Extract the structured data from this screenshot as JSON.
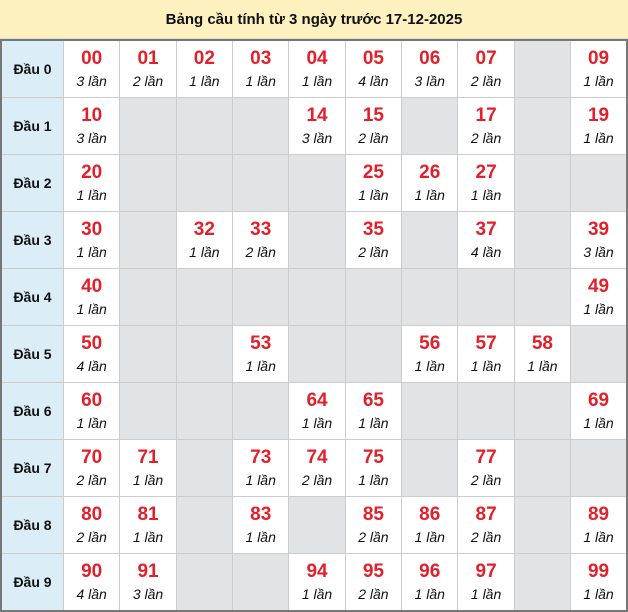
{
  "title": "Bảng cầu tính từ 3 ngày trước 17-12-2025",
  "colors": {
    "number": "#e3202a",
    "row_header_bg": "#dbedf7",
    "empty_bg": "#e2e3e5",
    "title_bg": "#fdf1c0"
  },
  "rows": [
    {
      "label": "Đầu 0",
      "cells": [
        {
          "n": "00",
          "c": "3 lần"
        },
        {
          "n": "01",
          "c": "2 lần"
        },
        {
          "n": "02",
          "c": "1 lần"
        },
        {
          "n": "03",
          "c": "1 lần"
        },
        {
          "n": "04",
          "c": "1 lần"
        },
        {
          "n": "05",
          "c": "4 lần"
        },
        {
          "n": "06",
          "c": "3 lần"
        },
        {
          "n": "07",
          "c": "2 lần"
        },
        null,
        {
          "n": "09",
          "c": "1 lần"
        }
      ]
    },
    {
      "label": "Đầu 1",
      "cells": [
        {
          "n": "10",
          "c": "3 lần"
        },
        null,
        null,
        null,
        {
          "n": "14",
          "c": "3 lần"
        },
        {
          "n": "15",
          "c": "2 lần"
        },
        null,
        {
          "n": "17",
          "c": "2 lần"
        },
        null,
        {
          "n": "19",
          "c": "1 lần"
        }
      ]
    },
    {
      "label": "Đầu 2",
      "cells": [
        {
          "n": "20",
          "c": "1 lần"
        },
        null,
        null,
        null,
        null,
        {
          "n": "25",
          "c": "1 lần"
        },
        {
          "n": "26",
          "c": "1 lần"
        },
        {
          "n": "27",
          "c": "1 lần"
        },
        null,
        null
      ]
    },
    {
      "label": "Đầu 3",
      "cells": [
        {
          "n": "30",
          "c": "1 lần"
        },
        null,
        {
          "n": "32",
          "c": "1 lần"
        },
        {
          "n": "33",
          "c": "2 lần"
        },
        null,
        {
          "n": "35",
          "c": "2 lần"
        },
        null,
        {
          "n": "37",
          "c": "4 lần"
        },
        null,
        {
          "n": "39",
          "c": "3 lần"
        }
      ]
    },
    {
      "label": "Đầu 4",
      "cells": [
        {
          "n": "40",
          "c": "1 lần"
        },
        null,
        null,
        null,
        null,
        null,
        null,
        null,
        null,
        {
          "n": "49",
          "c": "1 lần"
        }
      ]
    },
    {
      "label": "Đầu 5",
      "cells": [
        {
          "n": "50",
          "c": "4 lần"
        },
        null,
        null,
        {
          "n": "53",
          "c": "1 lần"
        },
        null,
        null,
        {
          "n": "56",
          "c": "1 lần"
        },
        {
          "n": "57",
          "c": "1 lần"
        },
        {
          "n": "58",
          "c": "1 lần"
        },
        null
      ]
    },
    {
      "label": "Đầu 6",
      "cells": [
        {
          "n": "60",
          "c": "1 lần"
        },
        null,
        null,
        null,
        {
          "n": "64",
          "c": "1 lần"
        },
        {
          "n": "65",
          "c": "1 lần"
        },
        null,
        null,
        null,
        {
          "n": "69",
          "c": "1 lần"
        }
      ]
    },
    {
      "label": "Đầu 7",
      "cells": [
        {
          "n": "70",
          "c": "2 lần"
        },
        {
          "n": "71",
          "c": "1 lần"
        },
        null,
        {
          "n": "73",
          "c": "1 lần"
        },
        {
          "n": "74",
          "c": "2 lần"
        },
        {
          "n": "75",
          "c": "1 lần"
        },
        null,
        {
          "n": "77",
          "c": "2 lần"
        },
        null,
        null
      ]
    },
    {
      "label": "Đầu 8",
      "cells": [
        {
          "n": "80",
          "c": "2 lần"
        },
        {
          "n": "81",
          "c": "1 lần"
        },
        null,
        {
          "n": "83",
          "c": "1 lần"
        },
        null,
        {
          "n": "85",
          "c": "2 lần"
        },
        {
          "n": "86",
          "c": "1 lần"
        },
        {
          "n": "87",
          "c": "2 lần"
        },
        null,
        {
          "n": "89",
          "c": "1 lần"
        }
      ]
    },
    {
      "label": "Đầu 9",
      "cells": [
        {
          "n": "90",
          "c": "4 lần"
        },
        {
          "n": "91",
          "c": "3 lần"
        },
        null,
        null,
        {
          "n": "94",
          "c": "1 lần"
        },
        {
          "n": "95",
          "c": "2 lần"
        },
        {
          "n": "96",
          "c": "1 lần"
        },
        {
          "n": "97",
          "c": "1 lần"
        },
        null,
        {
          "n": "99",
          "c": "1 lần"
        }
      ]
    }
  ]
}
